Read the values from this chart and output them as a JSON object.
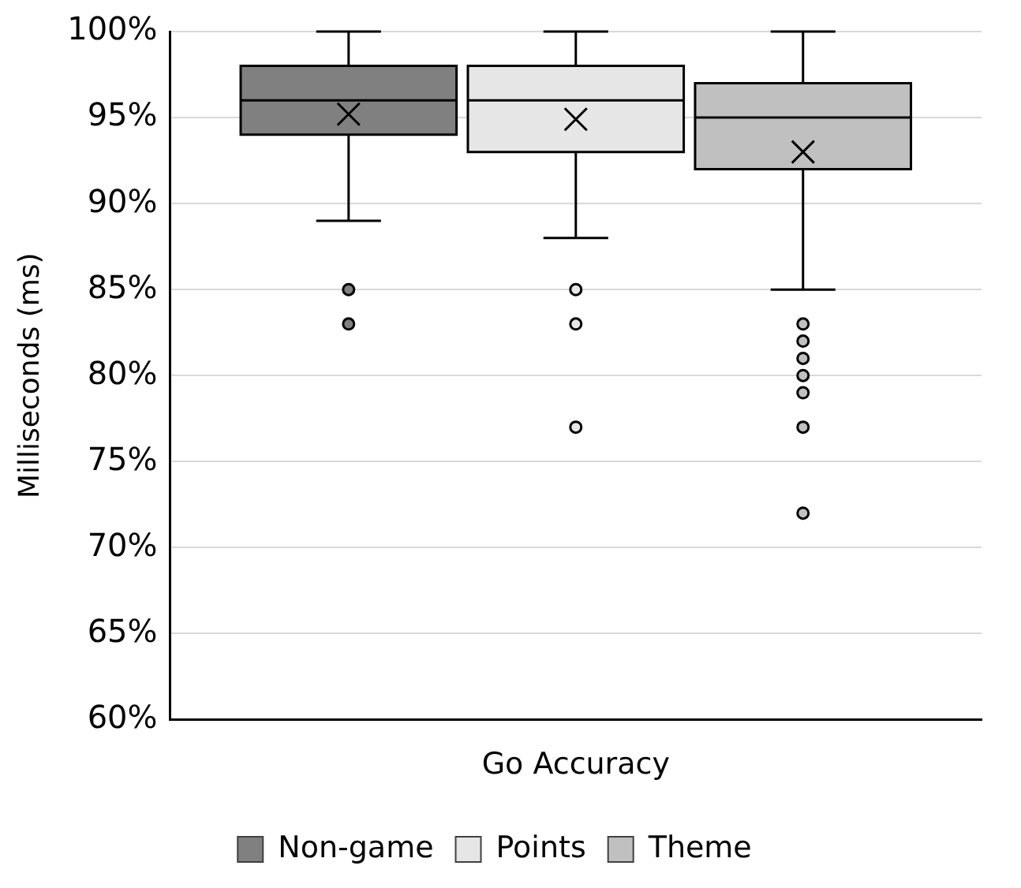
{
  "chart_data": {
    "type": "box",
    "ylabel": "Milliseconds (ms)",
    "categories": [
      "Go Accuracy"
    ],
    "ylim": [
      60,
      100
    ],
    "yticks": [
      {
        "value": 60,
        "label": "60%"
      },
      {
        "value": 65,
        "label": "65%"
      },
      {
        "value": 70,
        "label": "70%"
      },
      {
        "value": 75,
        "label": "75%"
      },
      {
        "value": 80,
        "label": "80%"
      },
      {
        "value": 85,
        "label": "85%"
      },
      {
        "value": 90,
        "label": "90%"
      },
      {
        "value": 95,
        "label": "95%"
      },
      {
        "value": 100,
        "label": "100%"
      }
    ],
    "grid": "y",
    "legend": "bottom",
    "marker": "circle",
    "series": [
      {
        "name": "Non-game",
        "color": "#808080",
        "boxes": [
          {
            "low": 89,
            "q1": 94,
            "median": 96,
            "q3": 98,
            "high": 100,
            "mean": 95.2,
            "outliers": [
              85,
              83
            ]
          }
        ]
      },
      {
        "name": "Points",
        "color": "#e6e6e6",
        "boxes": [
          {
            "low": 88,
            "q1": 93,
            "median": 96,
            "q3": 98,
            "high": 100,
            "mean": 94.9,
            "outliers": [
              85,
              83,
              77
            ]
          }
        ]
      },
      {
        "name": "Theme",
        "color": "#c0c0c0",
        "boxes": [
          {
            "low": 85,
            "q1": 92,
            "median": 95,
            "q3": 97,
            "high": 100,
            "mean": 93,
            "outliers": [
              83,
              82,
              81,
              80,
              79,
              77,
              72
            ]
          }
        ]
      }
    ]
  }
}
